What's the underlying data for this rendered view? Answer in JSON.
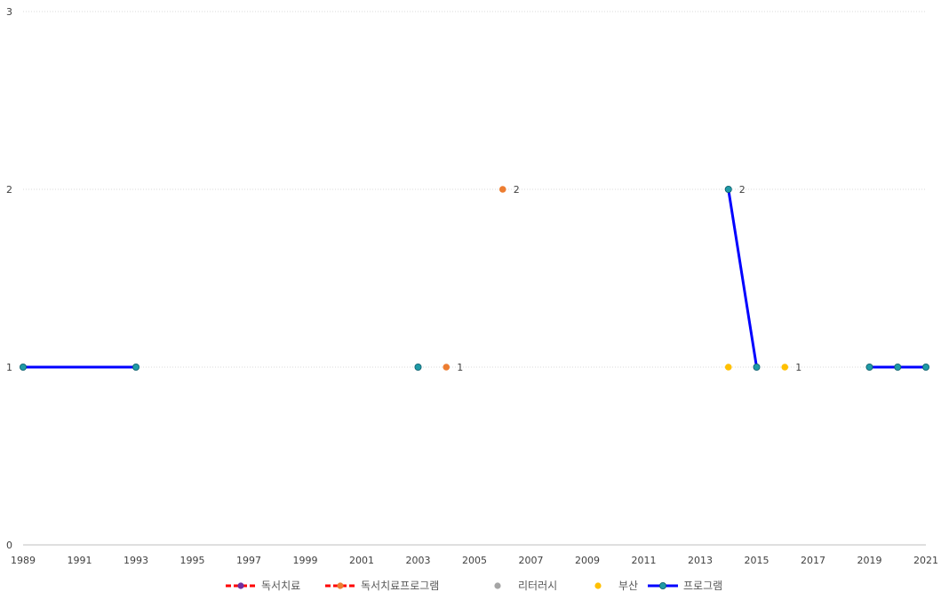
{
  "chart_data": {
    "type": "line",
    "title": "",
    "xlabel": "",
    "ylabel": "",
    "xlim": [
      1989,
      2021
    ],
    "ylim": [
      0,
      3
    ],
    "x_ticks": [
      1989,
      1991,
      1993,
      1995,
      1997,
      1999,
      2001,
      2003,
      2005,
      2007,
      2009,
      2011,
      2013,
      2015,
      2017,
      2019,
      2021
    ],
    "y_ticks": [
      0,
      1,
      2,
      3
    ],
    "grid": true,
    "legend_position": "bottom",
    "series": [
      {
        "name": "독서치료",
        "color": "#ff0000",
        "marker_color": "#7030a0",
        "line_style": "dashed",
        "points": []
      },
      {
        "name": "독서치료프로그램",
        "color": "#ff0000",
        "marker_color": "#ed7d31",
        "line_style": "dashed",
        "points": [
          {
            "x": 2004,
            "y": 1,
            "label": "1"
          },
          {
            "x": 2006,
            "y": 2,
            "label": "2"
          }
        ]
      },
      {
        "name": "리터러시",
        "color": "#a5a5a5",
        "marker_color": "#a5a5a5",
        "line_style": "none",
        "points": [
          {
            "x": 2014,
            "y": 2,
            "label": "2"
          }
        ]
      },
      {
        "name": "부산",
        "color": "#ffc000",
        "marker_color": "#ffc000",
        "line_style": "none",
        "points": [
          {
            "x": 2014,
            "y": 1,
            "label": ""
          },
          {
            "x": 2016,
            "y": 1,
            "label": "1"
          },
          {
            "x": 2019,
            "y": 1,
            "label": ""
          }
        ]
      },
      {
        "name": "프로그램",
        "color": "#0000ff",
        "marker_color": "#1f9aa6",
        "line_style": "solid",
        "segments": [
          [
            {
              "x": 1989,
              "y": 1
            },
            {
              "x": 1993,
              "y": 1
            }
          ],
          [
            {
              "x": 2003,
              "y": 1
            }
          ],
          [
            {
              "x": 2014,
              "y": 2
            },
            {
              "x": 2015,
              "y": 1
            }
          ],
          [
            {
              "x": 2019,
              "y": 1
            },
            {
              "x": 2020,
              "y": 1
            },
            {
              "x": 2021,
              "y": 1
            }
          ]
        ]
      }
    ]
  }
}
